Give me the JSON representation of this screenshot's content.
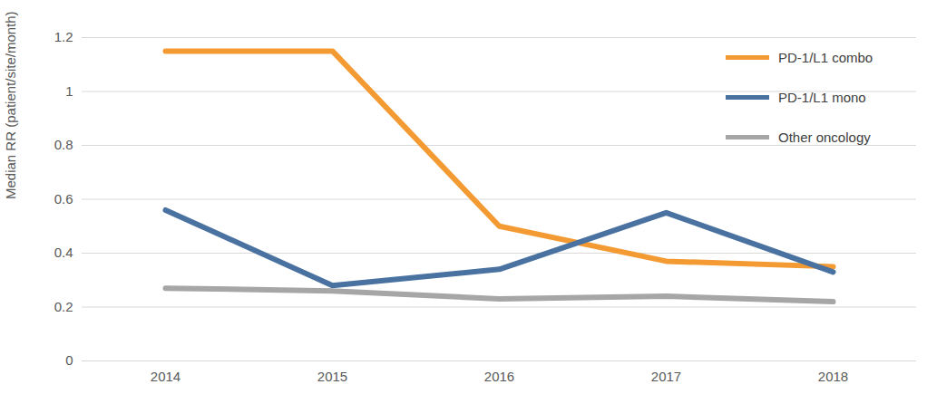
{
  "chart_data": {
    "type": "line",
    "y_label": "Median RR (patient/site/month)",
    "categories": [
      "2014",
      "2015",
      "2016",
      "2017",
      "2018"
    ],
    "series": [
      {
        "name": "PD-1/L1 combo",
        "color": "#f39a32",
        "values": [
          1.15,
          1.15,
          0.5,
          0.37,
          0.35
        ]
      },
      {
        "name": "PD-1/L1 mono",
        "color": "#4a72a0",
        "values": [
          0.56,
          0.28,
          0.34,
          0.55,
          0.33
        ]
      },
      {
        "name": "Other oncology",
        "color": "#a6a6a6",
        "values": [
          0.27,
          0.26,
          0.23,
          0.24,
          0.22
        ]
      }
    ],
    "ylim": [
      0,
      1.2
    ],
    "yticks": [
      0,
      0.2,
      0.4,
      0.6,
      0.8,
      1,
      1.2
    ],
    "grid": true,
    "legend": "top-right"
  }
}
